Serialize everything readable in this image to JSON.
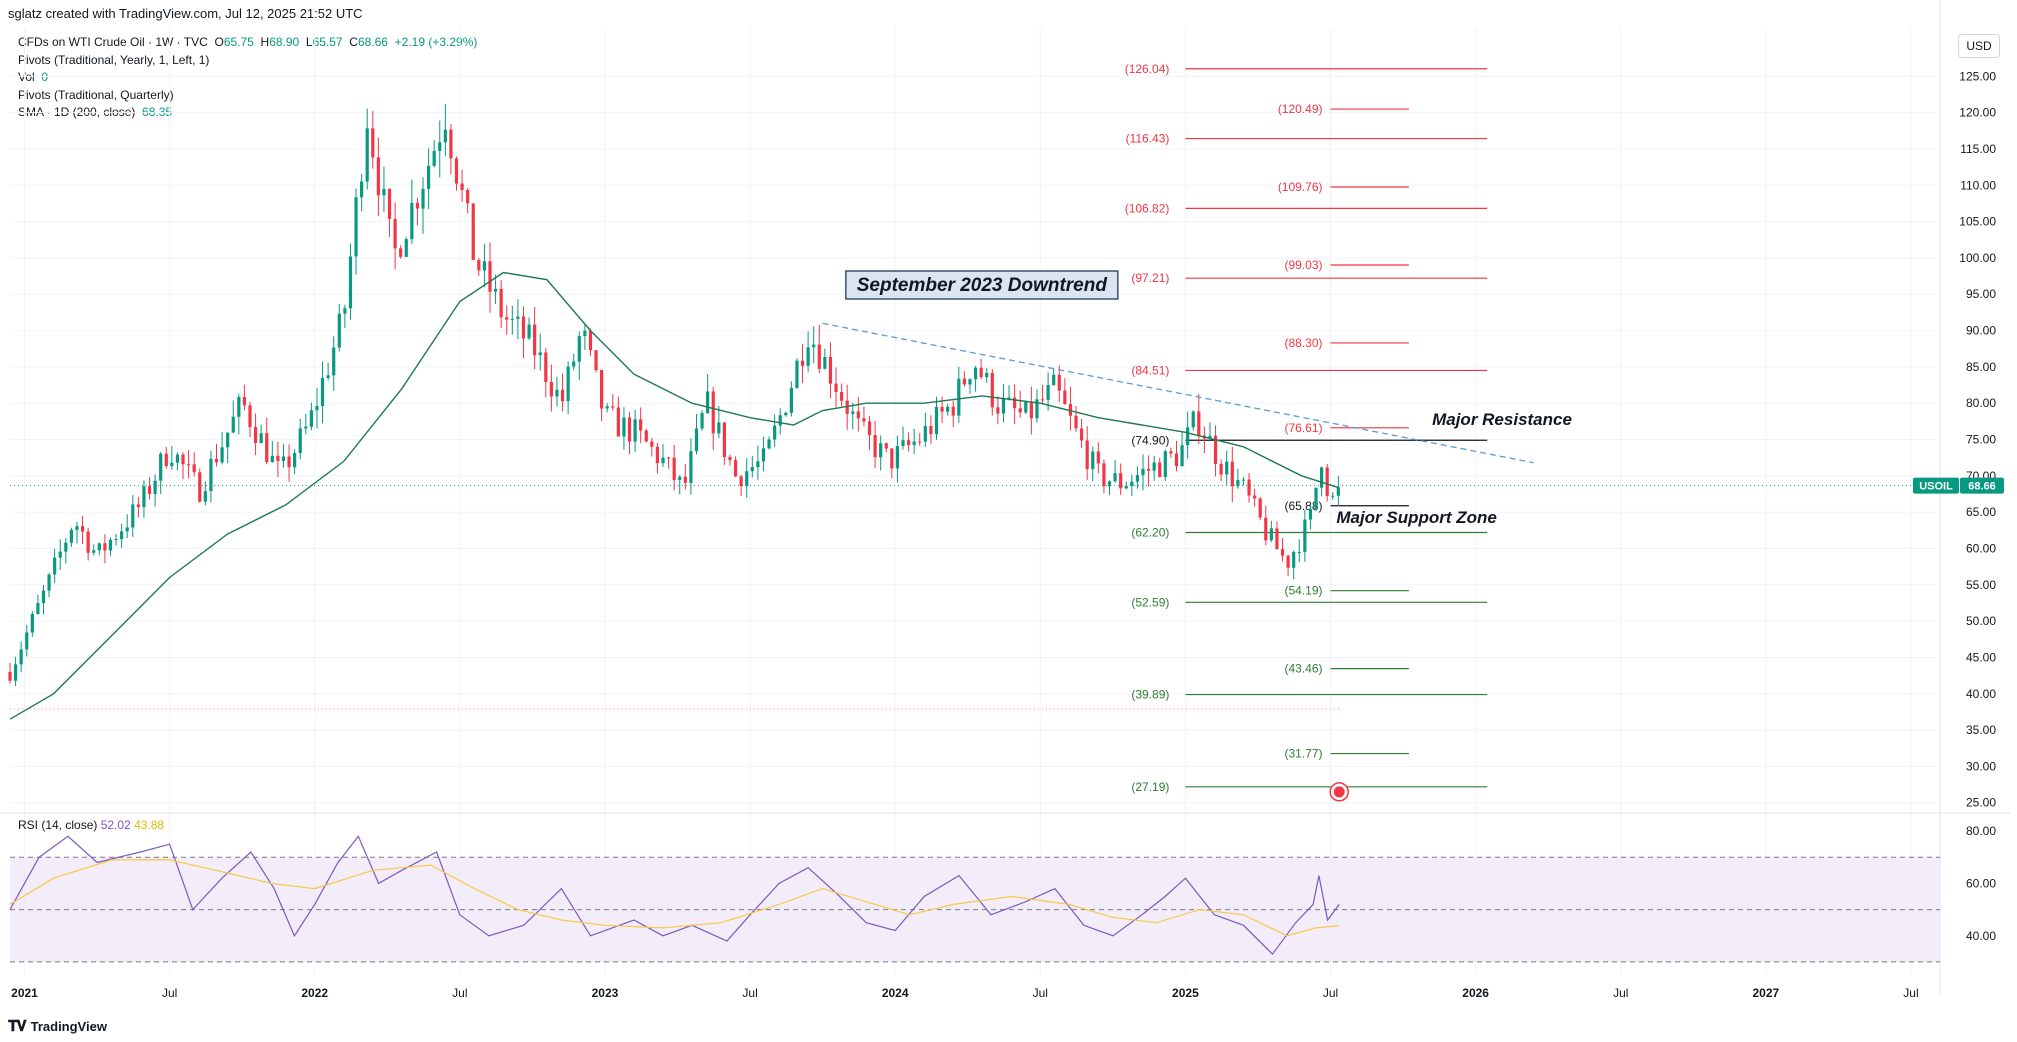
{
  "header": {
    "text": "sglatz created with TradingView.com, Jul 12, 2025 21:52 UTC"
  },
  "legend": {
    "symbol": "CFDs on WTI Crude Oil · 1W · TVC",
    "ohlc": {
      "o_label": "O",
      "o": "65.75",
      "h_label": "H",
      "h": "68.90",
      "l_label": "L",
      "l": "65.57",
      "c_label": "C",
      "c": "68.66",
      "change": "+2.19 (+3.29%)"
    },
    "pivots_yearly": "Pivots (Traditional, Yearly, 1, Left, 1)",
    "vol_label": "Vol",
    "vol_value": "0",
    "pivots_quarterly": "Pivots (Traditional, Quarterly)",
    "sma_label": "SMA · 1D (200, close)",
    "sma_value": "68.35"
  },
  "currency": "USD",
  "footer": {
    "brand": "TradingView"
  },
  "colors": {
    "up": "#089981",
    "down": "#f23645",
    "sma": "#1e7b4f",
    "rsi": "#7e57c2",
    "rsi_ma": "#f7c948",
    "trend": "#5b9bd5"
  },
  "chart_data": [
    {
      "type": "candlestick",
      "symbol": "USOIL",
      "last_price": "68.66",
      "y_ticks": [
        "125.00",
        "120.00",
        "115.00",
        "110.00",
        "105.00",
        "100.00",
        "95.00",
        "90.00",
        "85.00",
        "80.00",
        "75.00",
        "70.00",
        "65.00",
        "60.00",
        "55.00",
        "50.00",
        "45.00",
        "40.00",
        "35.00",
        "30.00",
        "25.00"
      ],
      "ylim": [
        24,
        130
      ],
      "x_ticks": [
        "2021",
        "Jul",
        "2022",
        "Jul",
        "2023",
        "Jul",
        "2024",
        "Jul",
        "2025",
        "Jul",
        "2026",
        "Jul",
        "2027",
        "Jul"
      ],
      "x_tick_times": [
        2021.0,
        2021.5,
        2022.0,
        2022.5,
        2023.0,
        2023.5,
        2024.0,
        2024.5,
        2025.0,
        2025.5,
        2026.0,
        2026.5,
        2027.0,
        2027.5
      ],
      "price_path": [
        [
          2020.95,
          43
        ],
        [
          2021.08,
          55
        ],
        [
          2021.17,
          64
        ],
        [
          2021.25,
          59
        ],
        [
          2021.4,
          66
        ],
        [
          2021.5,
          74
        ],
        [
          2021.6,
          68
        ],
        [
          2021.75,
          80
        ],
        [
          2021.88,
          70
        ],
        [
          2021.98,
          77
        ],
        [
          2022.1,
          92
        ],
        [
          2022.18,
          120
        ],
        [
          2022.27,
          100
        ],
        [
          2022.4,
          114
        ],
        [
          2022.45,
          120
        ],
        [
          2022.55,
          100
        ],
        [
          2022.65,
          92
        ],
        [
          2022.75,
          88
        ],
        [
          2022.85,
          80
        ],
        [
          2022.92,
          90
        ],
        [
          2023.0,
          78
        ],
        [
          2023.1,
          76
        ],
        [
          2023.2,
          72
        ],
        [
          2023.27,
          68
        ],
        [
          2023.35,
          80
        ],
        [
          2023.45,
          70
        ],
        [
          2023.55,
          72
        ],
        [
          2023.62,
          80
        ],
        [
          2023.7,
          90
        ],
        [
          2023.78,
          84
        ],
        [
          2023.88,
          76
        ],
        [
          2023.98,
          72
        ],
        [
          2024.08,
          75
        ],
        [
          2024.2,
          80
        ],
        [
          2024.27,
          86
        ],
        [
          2024.35,
          80
        ],
        [
          2024.45,
          78
        ],
        [
          2024.55,
          82
        ],
        [
          2024.62,
          76
        ],
        [
          2024.7,
          70
        ],
        [
          2024.78,
          69
        ],
        [
          2024.88,
          71
        ],
        [
          2024.98,
          73
        ],
        [
          2025.04,
          78
        ],
        [
          2025.12,
          72
        ],
        [
          2025.2,
          68
        ],
        [
          2025.28,
          62
        ],
        [
          2025.35,
          58
        ],
        [
          2025.43,
          64
        ],
        [
          2025.47,
          73
        ],
        [
          2025.5,
          66
        ],
        [
          2025.53,
          68.66
        ]
      ],
      "sma_path": [
        [
          2020.95,
          36.5
        ],
        [
          2021.1,
          40
        ],
        [
          2021.3,
          48
        ],
        [
          2021.5,
          56
        ],
        [
          2021.7,
          62
        ],
        [
          2021.9,
          66
        ],
        [
          2022.1,
          72
        ],
        [
          2022.3,
          82
        ],
        [
          2022.5,
          94
        ],
        [
          2022.65,
          98
        ],
        [
          2022.8,
          97
        ],
        [
          2022.95,
          90
        ],
        [
          2023.1,
          84
        ],
        [
          2023.3,
          80
        ],
        [
          2023.5,
          78
        ],
        [
          2023.65,
          77
        ],
        [
          2023.75,
          79
        ],
        [
          2023.9,
          80
        ],
        [
          2024.1,
          80
        ],
        [
          2024.3,
          81
        ],
        [
          2024.5,
          80
        ],
        [
          2024.7,
          78
        ],
        [
          2024.85,
          77
        ],
        [
          2025.0,
          76
        ],
        [
          2025.2,
          74
        ],
        [
          2025.4,
          70
        ],
        [
          2025.53,
          68.35
        ]
      ],
      "trendline": {
        "label": "September 2023 Downtrend",
        "from": [
          2023.75,
          91
        ],
        "to": [
          2026.2,
          71.8
        ]
      },
      "annotations": [
        {
          "text": "Major Resistance",
          "time": 2025.85,
          "price": 77
        },
        {
          "text": "Major Support Zone",
          "time": 2025.52,
          "price": 63.5
        }
      ],
      "yearly_pivots": [
        {
          "label": "(126.04)",
          "value": 126.04,
          "kind": "resistance"
        },
        {
          "label": "(116.43)",
          "value": 116.43,
          "kind": "resistance"
        },
        {
          "label": "(106.82)",
          "value": 106.82,
          "kind": "resistance"
        },
        {
          "label": "(97.21)",
          "value": 97.21,
          "kind": "resistance"
        },
        {
          "label": "(84.51)",
          "value": 84.51,
          "kind": "resistance"
        },
        {
          "label": "(74.90)",
          "value": 74.9,
          "kind": "pivot"
        },
        {
          "label": "(62.20)",
          "value": 62.2,
          "kind": "support"
        },
        {
          "label": "(52.59)",
          "value": 52.59,
          "kind": "support"
        },
        {
          "label": "(39.89)",
          "value": 39.89,
          "kind": "support"
        },
        {
          "label": "(27.19)",
          "value": 27.19,
          "kind": "support"
        }
      ],
      "quarterly_pivots": [
        {
          "label": "(120.49)",
          "value": 120.49,
          "kind": "resistance"
        },
        {
          "label": "(109.76)",
          "value": 109.76,
          "kind": "resistance"
        },
        {
          "label": "(99.03)",
          "value": 99.03,
          "kind": "resistance"
        },
        {
          "label": "(88.30)",
          "value": 88.3,
          "kind": "resistance"
        },
        {
          "label": "(76.61)",
          "value": 76.61,
          "kind": "resistance"
        },
        {
          "label": "(65.88)",
          "value": 65.88,
          "kind": "pivot"
        },
        {
          "label": "(54.19)",
          "value": 54.19,
          "kind": "support"
        },
        {
          "label": "(43.46)",
          "value": 43.46,
          "kind": "support"
        },
        {
          "label": "(31.77)",
          "value": 31.77,
          "kind": "support"
        }
      ]
    },
    {
      "type": "line",
      "title": "RSI (14, close)",
      "rsi_value": "52.02",
      "rsi_ma_value": "43.88",
      "y_ticks": [
        "80.00",
        "60.00",
        "40.00"
      ],
      "ylim": [
        25,
        85
      ],
      "bands": [
        30,
        50,
        70
      ],
      "rsi_path": [
        [
          2020.95,
          50
        ],
        [
          2021.05,
          70
        ],
        [
          2021.15,
          78
        ],
        [
          2021.25,
          68
        ],
        [
          2021.4,
          72
        ],
        [
          2021.5,
          75
        ],
        [
          2021.58,
          50
        ],
        [
          2021.68,
          62
        ],
        [
          2021.78,
          72
        ],
        [
          2021.86,
          58
        ],
        [
          2021.93,
          40
        ],
        [
          2022.0,
          52
        ],
        [
          2022.08,
          68
        ],
        [
          2022.15,
          78
        ],
        [
          2022.22,
          60
        ],
        [
          2022.3,
          65
        ],
        [
          2022.42,
          72
        ],
        [
          2022.5,
          48
        ],
        [
          2022.6,
          40
        ],
        [
          2022.72,
          44
        ],
        [
          2022.85,
          58
        ],
        [
          2022.95,
          40
        ],
        [
          2023.1,
          46
        ],
        [
          2023.2,
          40
        ],
        [
          2023.3,
          44
        ],
        [
          2023.42,
          38
        ],
        [
          2023.5,
          48
        ],
        [
          2023.6,
          60
        ],
        [
          2023.7,
          66
        ],
        [
          2023.8,
          56
        ],
        [
          2023.9,
          45
        ],
        [
          2024.0,
          42
        ],
        [
          2024.1,
          55
        ],
        [
          2024.22,
          63
        ],
        [
          2024.33,
          48
        ],
        [
          2024.45,
          53
        ],
        [
          2024.55,
          58
        ],
        [
          2024.65,
          44
        ],
        [
          2024.75,
          40
        ],
        [
          2024.85,
          48
        ],
        [
          2024.93,
          55
        ],
        [
          2025.0,
          62
        ],
        [
          2025.1,
          48
        ],
        [
          2025.2,
          44
        ],
        [
          2025.3,
          33
        ],
        [
          2025.38,
          45
        ],
        [
          2025.44,
          52
        ],
        [
          2025.46,
          63
        ],
        [
          2025.49,
          46
        ],
        [
          2025.53,
          52
        ]
      ],
      "rsi_ma_path": [
        [
          2020.95,
          52
        ],
        [
          2021.1,
          62
        ],
        [
          2021.3,
          69
        ],
        [
          2021.5,
          69
        ],
        [
          2021.7,
          64
        ],
        [
          2021.85,
          60
        ],
        [
          2022.0,
          58
        ],
        [
          2022.2,
          65
        ],
        [
          2022.4,
          67
        ],
        [
          2022.55,
          58
        ],
        [
          2022.7,
          50
        ],
        [
          2022.85,
          46
        ],
        [
          2023.0,
          44
        ],
        [
          2023.2,
          43
        ],
        [
          2023.4,
          45
        ],
        [
          2023.6,
          52
        ],
        [
          2023.75,
          58
        ],
        [
          2023.9,
          53
        ],
        [
          2024.05,
          48
        ],
        [
          2024.2,
          52
        ],
        [
          2024.4,
          55
        ],
        [
          2024.6,
          52
        ],
        [
          2024.75,
          47
        ],
        [
          2024.9,
          45
        ],
        [
          2025.05,
          50
        ],
        [
          2025.2,
          48
        ],
        [
          2025.35,
          40
        ],
        [
          2025.45,
          43
        ],
        [
          2025.53,
          43.88
        ]
      ]
    }
  ]
}
